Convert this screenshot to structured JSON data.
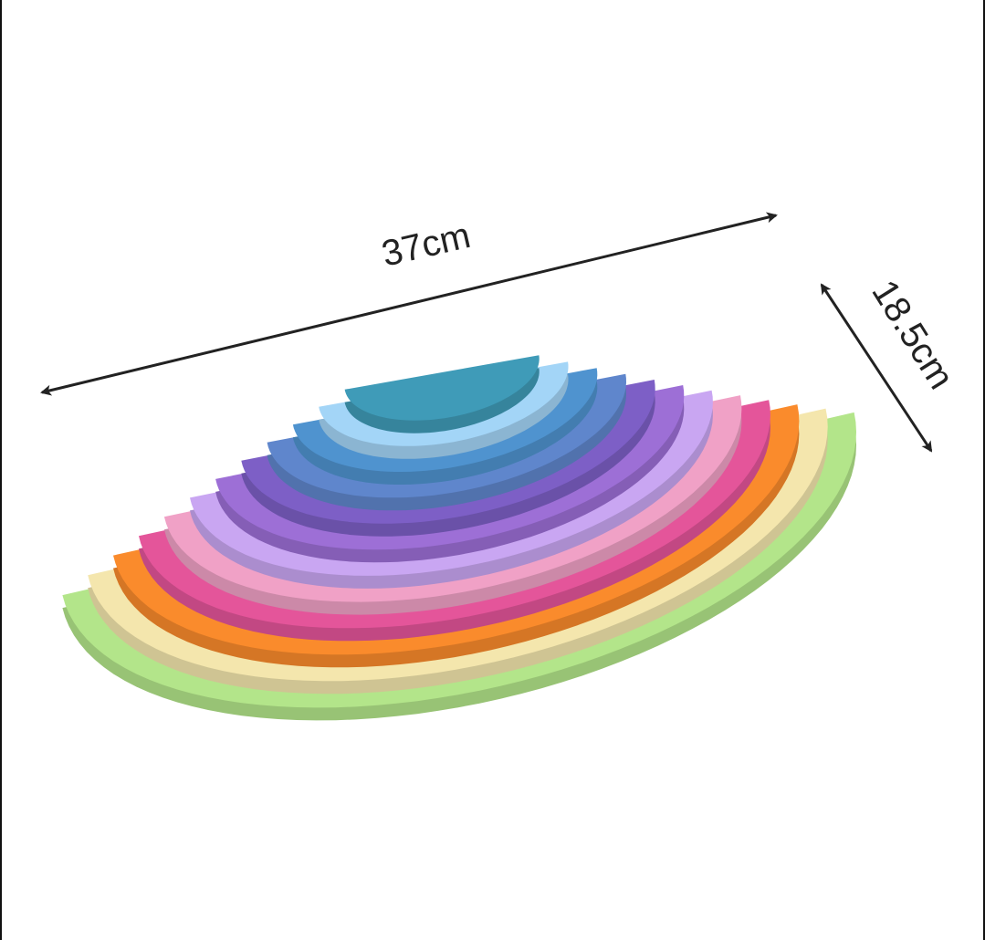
{
  "dimensions": {
    "length_label": "37cm",
    "width_label": "18.5cm"
  },
  "arch_colors": [
    "#b3e58a",
    "#f4e6ad",
    "#fa8b2c",
    "#e4559a",
    "#f0a1c6",
    "#c9a6f2",
    "#9d6fd6",
    "#7d5fc6",
    "#5f86cc",
    "#4f93cf",
    "#a3d5f7",
    "#3f9bb8"
  ],
  "arrow_color": "#222222"
}
